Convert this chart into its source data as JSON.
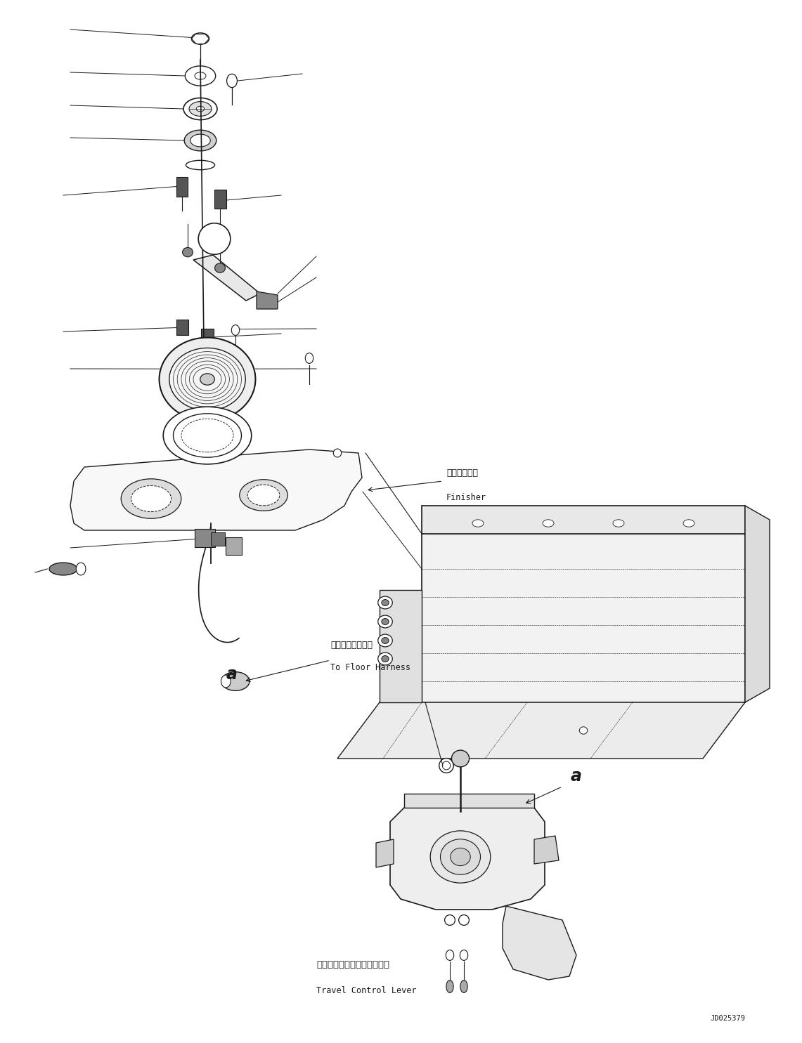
{
  "bg_color": "#ffffff",
  "line_color": "#1a1a1a",
  "watermark": "JD025379",
  "figsize": [
    11.41,
    14.85
  ],
  "dpi": 100,
  "labels": {
    "finisher_jp": "フィニッシャ",
    "finisher_en": "Finisher",
    "harness_jp": "フロアハーネスへ",
    "harness_en": "To Floor Harness",
    "lever_jp": "トラベルコントロールレバー",
    "lever_en": "Travel Control Lever",
    "a1": "a",
    "a2": "a"
  }
}
